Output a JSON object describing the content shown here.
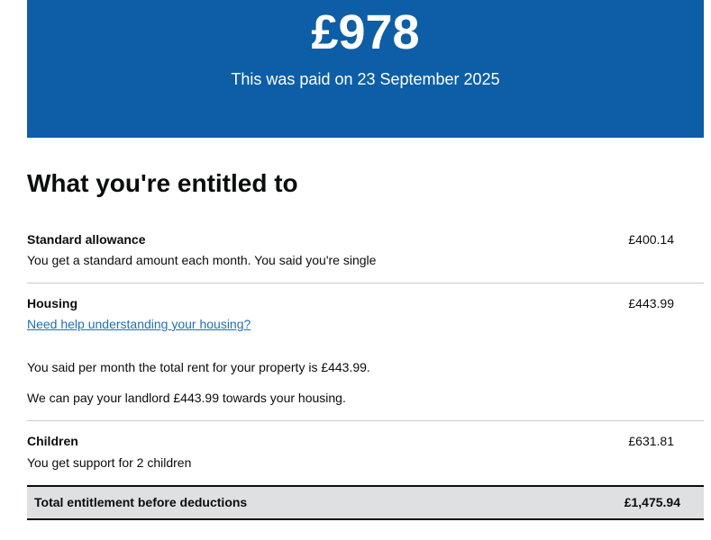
{
  "panel": {
    "amount": "£978",
    "paid_text": "This was paid on 23 September 2025",
    "color": "#0d5ea6"
  },
  "heading": "What you're entitled to",
  "items": [
    {
      "label": "Standard allowance",
      "value": "£400.14",
      "lines": [
        "You get a standard amount each month. You said you're single"
      ]
    },
    {
      "label": "Housing",
      "value": "£443.99",
      "link": "Need help understanding your housing?",
      "lines": [
        "You said per month the total rent for your property is £443.99.",
        "We can pay your landlord £443.99 towards your housing."
      ]
    },
    {
      "label": "Children",
      "value": "£631.81",
      "lines": [
        "You get support for 2 children"
      ]
    }
  ],
  "total": {
    "label": "Total entitlement before deductions",
    "value": "£1,475.94"
  }
}
